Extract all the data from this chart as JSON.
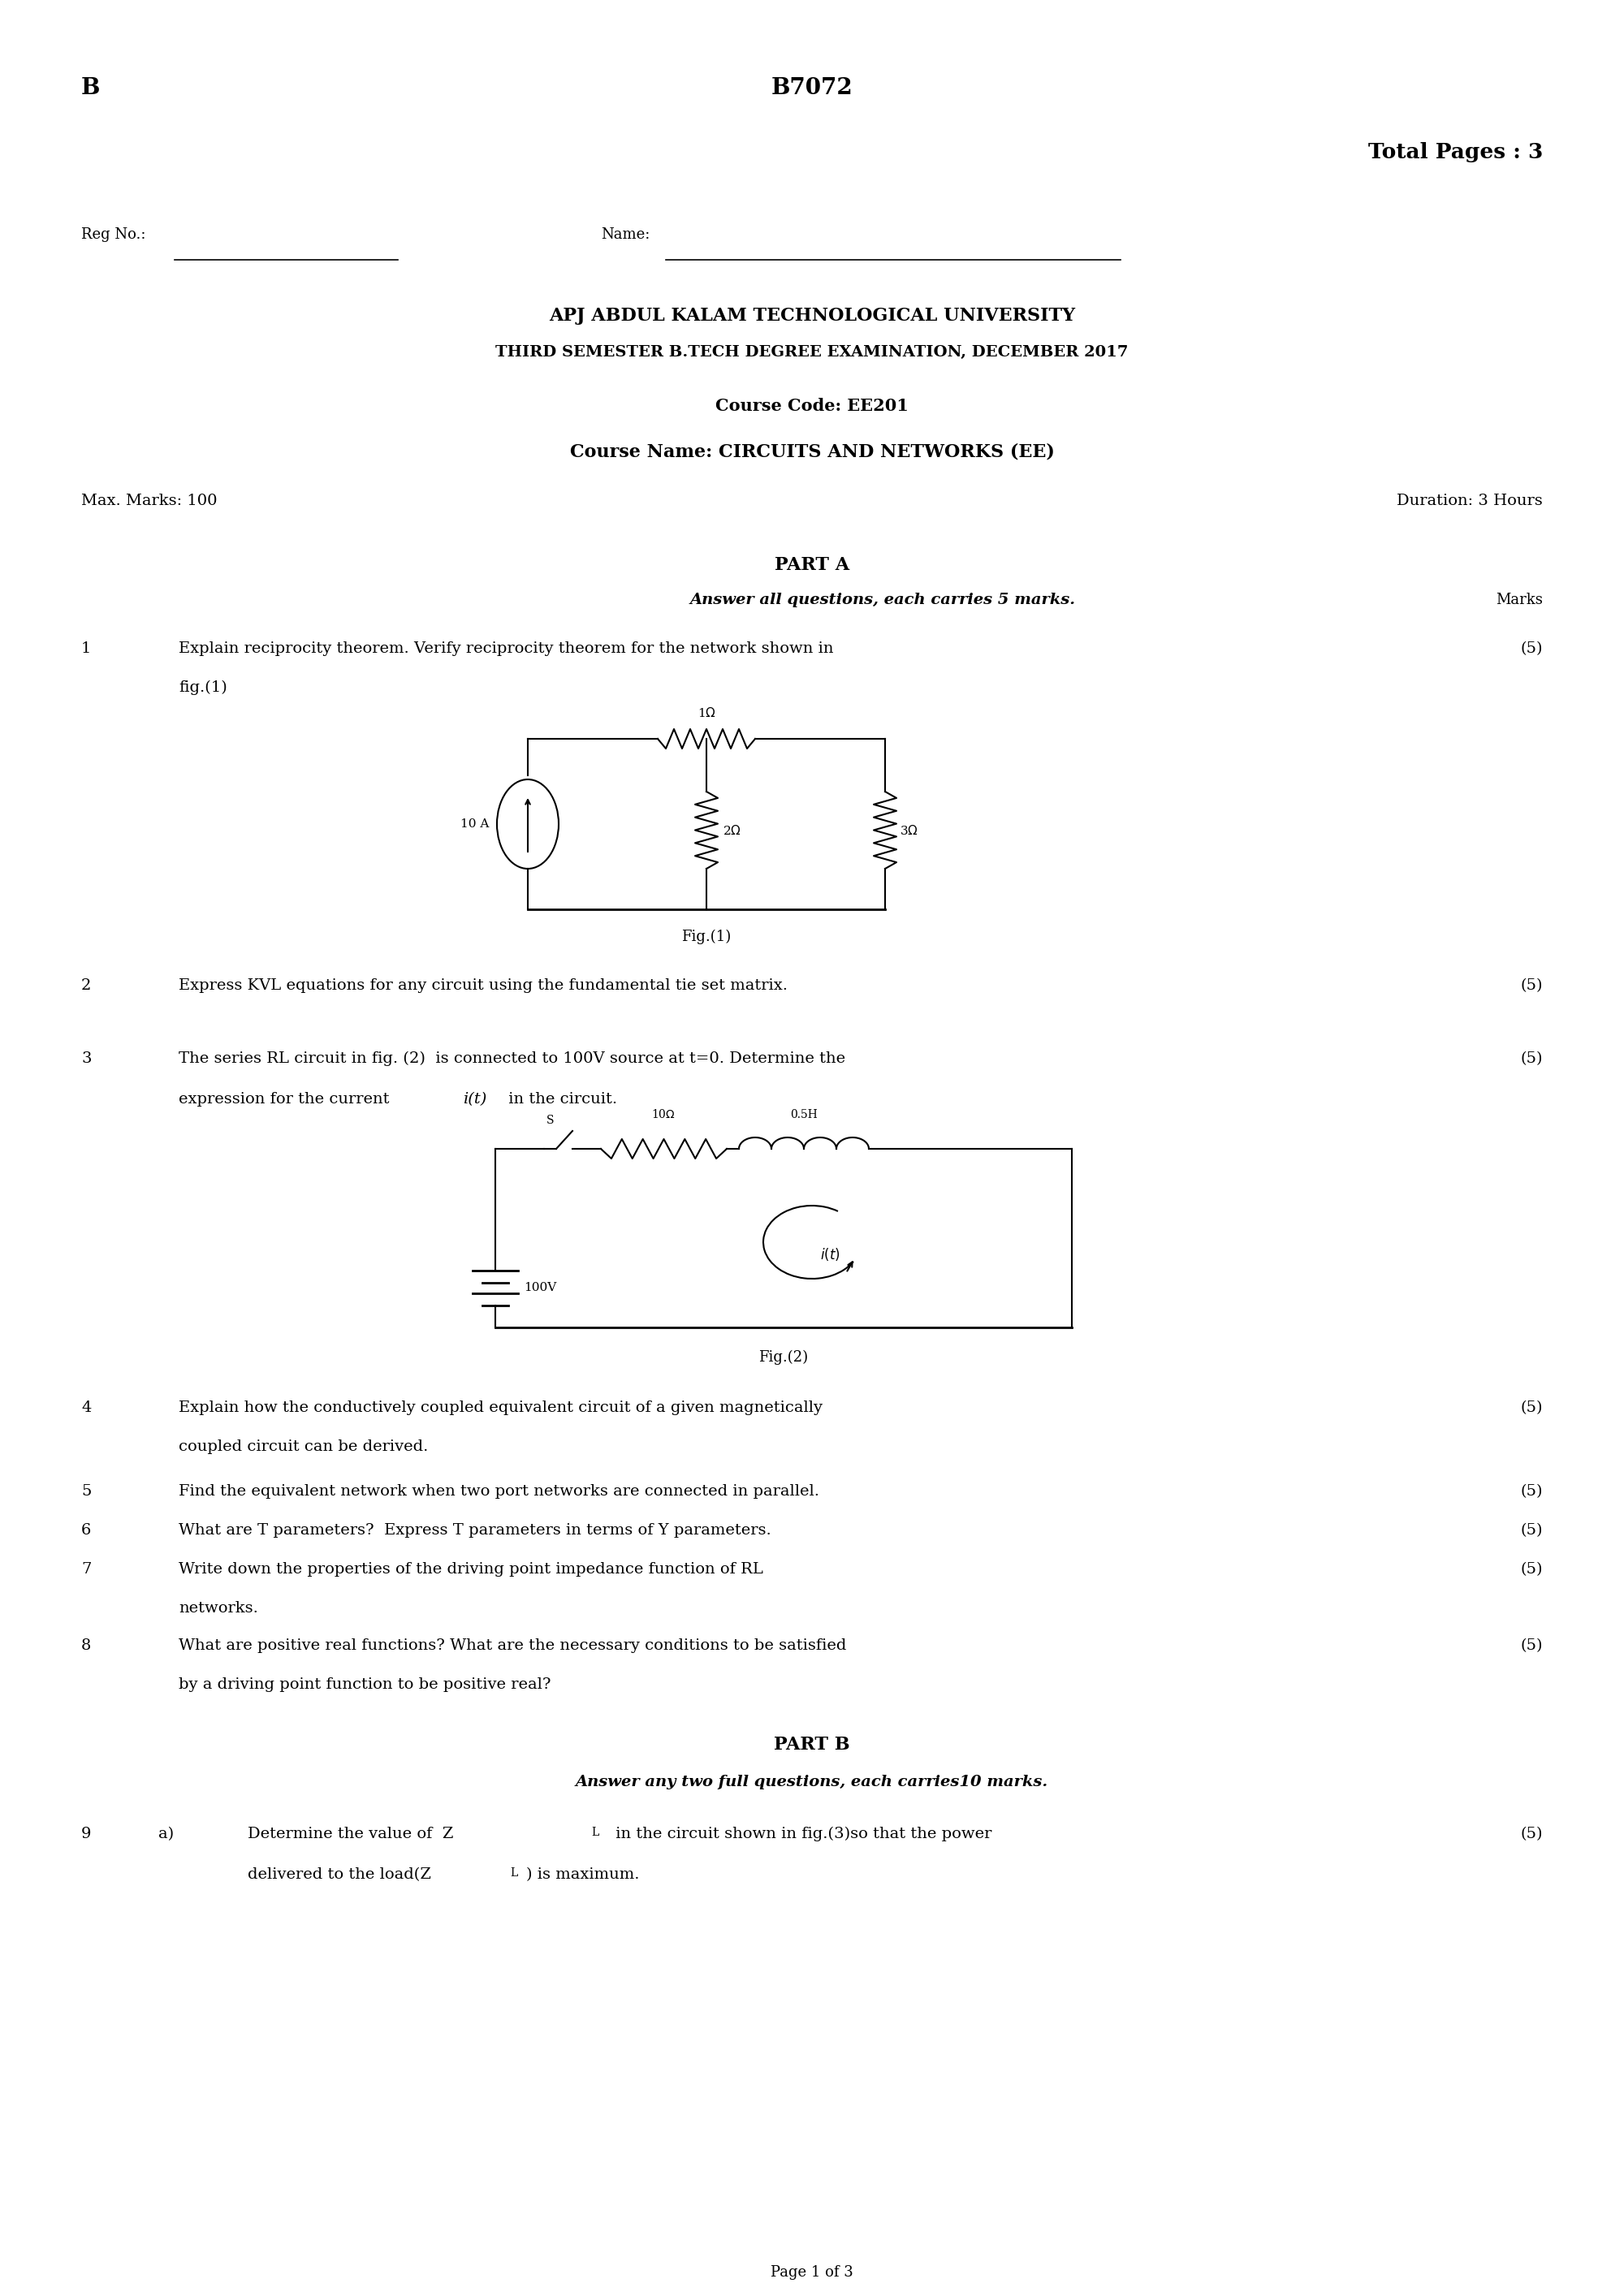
{
  "page_bg": "#ffffff",
  "top_left_letter": "B",
  "top_center_code": "B7072",
  "total_pages": "Total Pages : 3",
  "reg_no_label": "Reg No.:",
  "name_label": "Name:",
  "university": "APJ ABDUL KALAM TECHNOLOGICAL UNIVERSITY",
  "exam_line": "THIRD SEMESTER B.TECH DEGREE EXAMINATION, DECEMBER 2017",
  "course_code": "Course Code: EE201",
  "course_name": "Course Name: CIRCUITS AND NETWORKS (EE)",
  "max_marks": "Max. Marks: 100",
  "duration": "Duration: 3 Hours",
  "part_a_title": "PART A",
  "part_a_sub": "Answer all questions, each carries 5 marks.",
  "marks_label": "Marks",
  "q1_num": "1",
  "q1": "Explain reciprocity theorem. Verify reciprocity theorem for the network shown in",
  "q1b": "fig.(1)",
  "fig1_label": "Fig.(1)",
  "q1_marks": "(5)",
  "q2_num": "2",
  "q2": "Express KVL equations for any circuit using the fundamental tie set matrix.",
  "q2_marks": "(5)",
  "q3_num": "3",
  "q3": "The series RL circuit in fig. (2)  is connected to 100V source at t=0. Determine the",
  "q3b": "expression for the current ",
  "q3c": "i(t)",
  "q3d": " in the circuit.",
  "fig2_label": "Fig.(2)",
  "q3_marks": "(5)",
  "q4_num": "4",
  "q4": "Explain how the conductively coupled equivalent circuit of a given magnetically",
  "q4b": "coupled circuit can be derived.",
  "q4_marks": "(5)",
  "q5_num": "5",
  "q5": "Find the equivalent network when two port networks are connected in parallel.",
  "q5_marks": "(5)",
  "q6_num": "6",
  "q6": "What are T parameters?  Express T parameters in terms of Y parameters.",
  "q6_marks": "(5)",
  "q7_num": "7",
  "q7": "Write down the properties of the driving point impedance function of RL",
  "q7b": "networks.",
  "q7_marks": "(5)",
  "q8_num": "8",
  "q8": "What are positive real functions? What are the necessary conditions to be satisfied",
  "q8b": "by a driving point function to be positive real?",
  "q8_marks": "(5)",
  "part_b_title": "PART B",
  "part_b_sub": "Answer any two full questions, each carries10 marks.",
  "q9_num": "9",
  "q9a_label": "a)",
  "q9a_text": "Determine the value of  Z",
  "q9a_sub": "L",
  "q9a_cont": " in the circuit shown in fig.(3)so that the power",
  "q9b_text": "delivered to the load(Z",
  "q9b_sub": "L",
  "q9b_cont": ") is maximum.",
  "q9_marks": "(5)",
  "page_footer": "Page 1 of 3",
  "text_color": "#000000",
  "font_family": "DejaVu Serif"
}
